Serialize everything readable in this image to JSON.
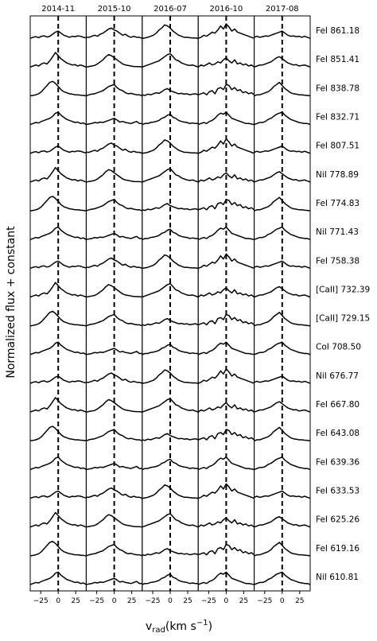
{
  "chart_data": {
    "type": "line",
    "xlabel_main": "v",
    "xlabel_sub": "rad",
    "xlabel_unit": "(km s",
    "xlabel_exp": "−1",
    "xlabel_close": ")",
    "ylabel": "Normalized flux + constant",
    "panels": [
      "2014-11",
      "2015-10",
      "2016-07",
      "2016-10",
      "2017-08"
    ],
    "xlim": [
      -40,
      40
    ],
    "xticks": [
      -25,
      0,
      25
    ],
    "xtick_labels": [
      "−25",
      "0",
      "25"
    ],
    "reference_velocity": 0,
    "grid": false,
    "lines": [
      "FeI 861.18",
      "FeI 851.41",
      "FeI 838.78",
      "FeI 832.71",
      "FeI 807.51",
      "NiI 778.89",
      "FeI 774.83",
      "NiI 771.43",
      "FeI 758.38",
      "[CaII] 732.39",
      "[CaII] 729.15",
      "CoI 708.50",
      "NiI 676.77",
      "FeI 667.80",
      "FeI 643.08",
      "FeI 639.36",
      "FeI 633.53",
      "FeI 625.26",
      "FeI 619.16",
      "NiI 610.81"
    ],
    "line_label_text": [
      "FeI 861.18",
      "FeI 851.41",
      "FeI 838.78",
      "FeI 832.71",
      "FeI 807.51",
      "NiI 778.89",
      "FeI 774.83",
      "NiI 771.43",
      "FeI 758.38",
      "[CaII] 732.39",
      "[CaII] 729.15",
      "CoI 708.50",
      "NiI 676.77",
      "FeI 667.80",
      "FeI 643.08",
      "FeI 639.36",
      "FeI 633.53",
      "FeI 625.26",
      "FeI 619.16",
      "NiI 610.81"
    ],
    "line_label_display": [
      "FeI 861.18",
      "FeI 851.41",
      "FeI 838.78",
      "FeI 832.71",
      "FeI 807.51",
      "NiI 778.89",
      "FeI 774.83",
      "NiI 771.43",
      "FeI 758.38",
      "[CaII] 732.39",
      "[CaII] 729.15",
      "CoI 708.50",
      "NiI 676.77",
      "FeI 667.80",
      "FeI 643.08",
      "FeI 639.36",
      "FeI 633.53",
      "FeI 625.26",
      "FeI 619.16",
      "NiI 610.81"
    ],
    "x": [
      -40,
      -36,
      -32,
      -28,
      -24,
      -20,
      -16,
      -12,
      -8,
      -4,
      0,
      4,
      8,
      12,
      16,
      20,
      24,
      28,
      32,
      36,
      40
    ],
    "profiles": [
      [
        [
          0,
          0.05,
          0.08,
          0.03,
          0.1,
          0.12,
          0.06,
          0.1,
          0.2,
          0.3,
          0.35,
          0.25,
          0.15,
          0.1,
          0.05,
          0.1,
          0.08,
          0.12,
          0.1,
          0.05,
          0.02
        ],
        [
          0,
          0.03,
          0.05,
          0.1,
          0.08,
          0.12,
          0.1,
          0.15,
          0.2,
          0.25,
          0.3,
          0.22,
          0.12,
          0.15,
          0.1,
          0.08,
          0.05,
          0.1,
          0.15,
          0.05,
          0.05
        ],
        [
          0.05,
          0.02,
          0.08,
          0.05,
          0.1,
          0.15,
          0.12,
          0.2,
          0.3,
          0.35,
          0.25,
          0.2,
          0.15,
          0.1,
          0.12,
          0.08,
          0.1,
          0.05,
          0.08,
          0.1,
          0.05
        ],
        [
          0,
          0.1,
          0.05,
          0.12,
          0.2,
          0.1,
          0.15,
          0.25,
          0.2,
          0.35,
          0.45,
          0.3,
          0.2,
          0.35,
          0.15,
          0.2,
          0.1,
          0.15,
          0.05,
          0.1,
          0
        ],
        [
          0.05,
          0.1,
          0.05,
          0.08,
          0.12,
          0.1,
          0.15,
          0.2,
          0.25,
          0.3,
          0.35,
          0.25,
          0.15,
          0.1,
          0.12,
          0.08,
          0.1,
          0.05,
          0.1,
          0.05,
          0
        ]
      ],
      [
        [
          0,
          0.05,
          0.1,
          0.05,
          0.15,
          0.2,
          0.15,
          0.3,
          0.5,
          0.7,
          0.55,
          0.4,
          0.3,
          0.2,
          0.15,
          0.1,
          0.12,
          0.05,
          0.1,
          0.05,
          0
        ],
        [
          0.05,
          0.05,
          0.1,
          0.15,
          0.1,
          0.2,
          0.25,
          0.35,
          0.45,
          0.5,
          0.4,
          0.35,
          0.25,
          0.15,
          0.2,
          0.1,
          0.05,
          0.1,
          0.05,
          0.05,
          0
        ],
        [
          0,
          0.05,
          0.05,
          0.1,
          0.12,
          0.15,
          0.2,
          0.3,
          0.35,
          0.45,
          0.5,
          0.35,
          0.3,
          0.2,
          0.15,
          0.12,
          0.1,
          0.05,
          0.08,
          0.05,
          0.05
        ],
        [
          0.05,
          0.1,
          0.15,
          0.05,
          0.2,
          0.25,
          0.1,
          0.35,
          0.4,
          0.3,
          0.55,
          0.5,
          0.3,
          0.4,
          0.25,
          0.3,
          0.15,
          0.2,
          0.1,
          0.15,
          0.05
        ],
        [
          0,
          0.05,
          0.1,
          0.1,
          0.15,
          0.2,
          0.25,
          0.35,
          0.45,
          0.5,
          0.4,
          0.3,
          0.2,
          0.15,
          0.1,
          0.12,
          0.05,
          0.08,
          0.1,
          0.05,
          0
        ]
      ],
      [
        [
          0,
          0.02,
          0.05,
          0.1,
          0.2,
          0.35,
          0.5,
          0.65,
          0.7,
          0.6,
          0.45,
          0.3,
          0.2,
          0.15,
          0.1,
          0.08,
          0.05,
          0.05,
          0.03,
          0.02,
          0
        ],
        [
          0,
          0.03,
          0.05,
          0.08,
          0.15,
          0.25,
          0.35,
          0.5,
          0.6,
          0.55,
          0.45,
          0.35,
          0.25,
          0.15,
          0.1,
          0.08,
          0.05,
          0.03,
          0.02,
          0.02,
          0
        ],
        [
          0,
          0.02,
          0.05,
          0.1,
          0.15,
          0.25,
          0.4,
          0.5,
          0.65,
          0.6,
          0.5,
          0.35,
          0.25,
          0.15,
          0.1,
          0.05,
          0.05,
          0.03,
          0.02,
          0.02,
          0
        ],
        [
          0,
          0.05,
          0.1,
          0.05,
          0.15,
          0.2,
          0.3,
          0.45,
          0.55,
          0.5,
          0.6,
          0.45,
          0.3,
          0.25,
          0.2,
          0.15,
          0.1,
          0.05,
          0.05,
          0.03,
          0
        ],
        [
          0,
          0.05,
          0.05,
          0.1,
          0.15,
          0.2,
          0.3,
          0.45,
          0.55,
          0.65,
          0.5,
          0.35,
          0.25,
          0.15,
          0.1,
          0.08,
          0.05,
          0.05,
          0.03,
          0.02,
          0
        ]
      ],
      [
        [
          0,
          0.05,
          0.1,
          0.08,
          0.15,
          0.2,
          0.25,
          0.3,
          0.4,
          0.55,
          0.6,
          0.45,
          0.35,
          0.25,
          0.2,
          0.15,
          0.1,
          0.12,
          0.05,
          0.08,
          0
        ],
        [
          0,
          0.05,
          0.08,
          0.1,
          0.15,
          0.2,
          0.25,
          0.35,
          0.45,
          0.5,
          0.55,
          0.4,
          0.3,
          0.25,
          0.15,
          0.1,
          0.12,
          0.08,
          0.05,
          0.05,
          0
        ],
        [
          0,
          0.05,
          0.1,
          0.15,
          0.2,
          0.25,
          0.3,
          0.4,
          0.5,
          0.6,
          0.65,
          0.5,
          0.35,
          0.3,
          0.2,
          0.15,
          0.1,
          0.08,
          0.1,
          0.05,
          0
        ],
        [
          0,
          0.05,
          0.15,
          0.1,
          0.2,
          0.3,
          0.25,
          0.4,
          0.6,
          0.45,
          0.7,
          0.55,
          0.35,
          0.45,
          0.3,
          0.25,
          0.2,
          0.15,
          0.1,
          0.05,
          0
        ],
        [
          0,
          0.05,
          0.1,
          0.1,
          0.15,
          0.25,
          0.3,
          0.4,
          0.5,
          0.55,
          0.6,
          0.45,
          0.35,
          0.25,
          0.2,
          0.15,
          0.1,
          0.08,
          0.05,
          0.05,
          0
        ]
      ]
    ]
  }
}
